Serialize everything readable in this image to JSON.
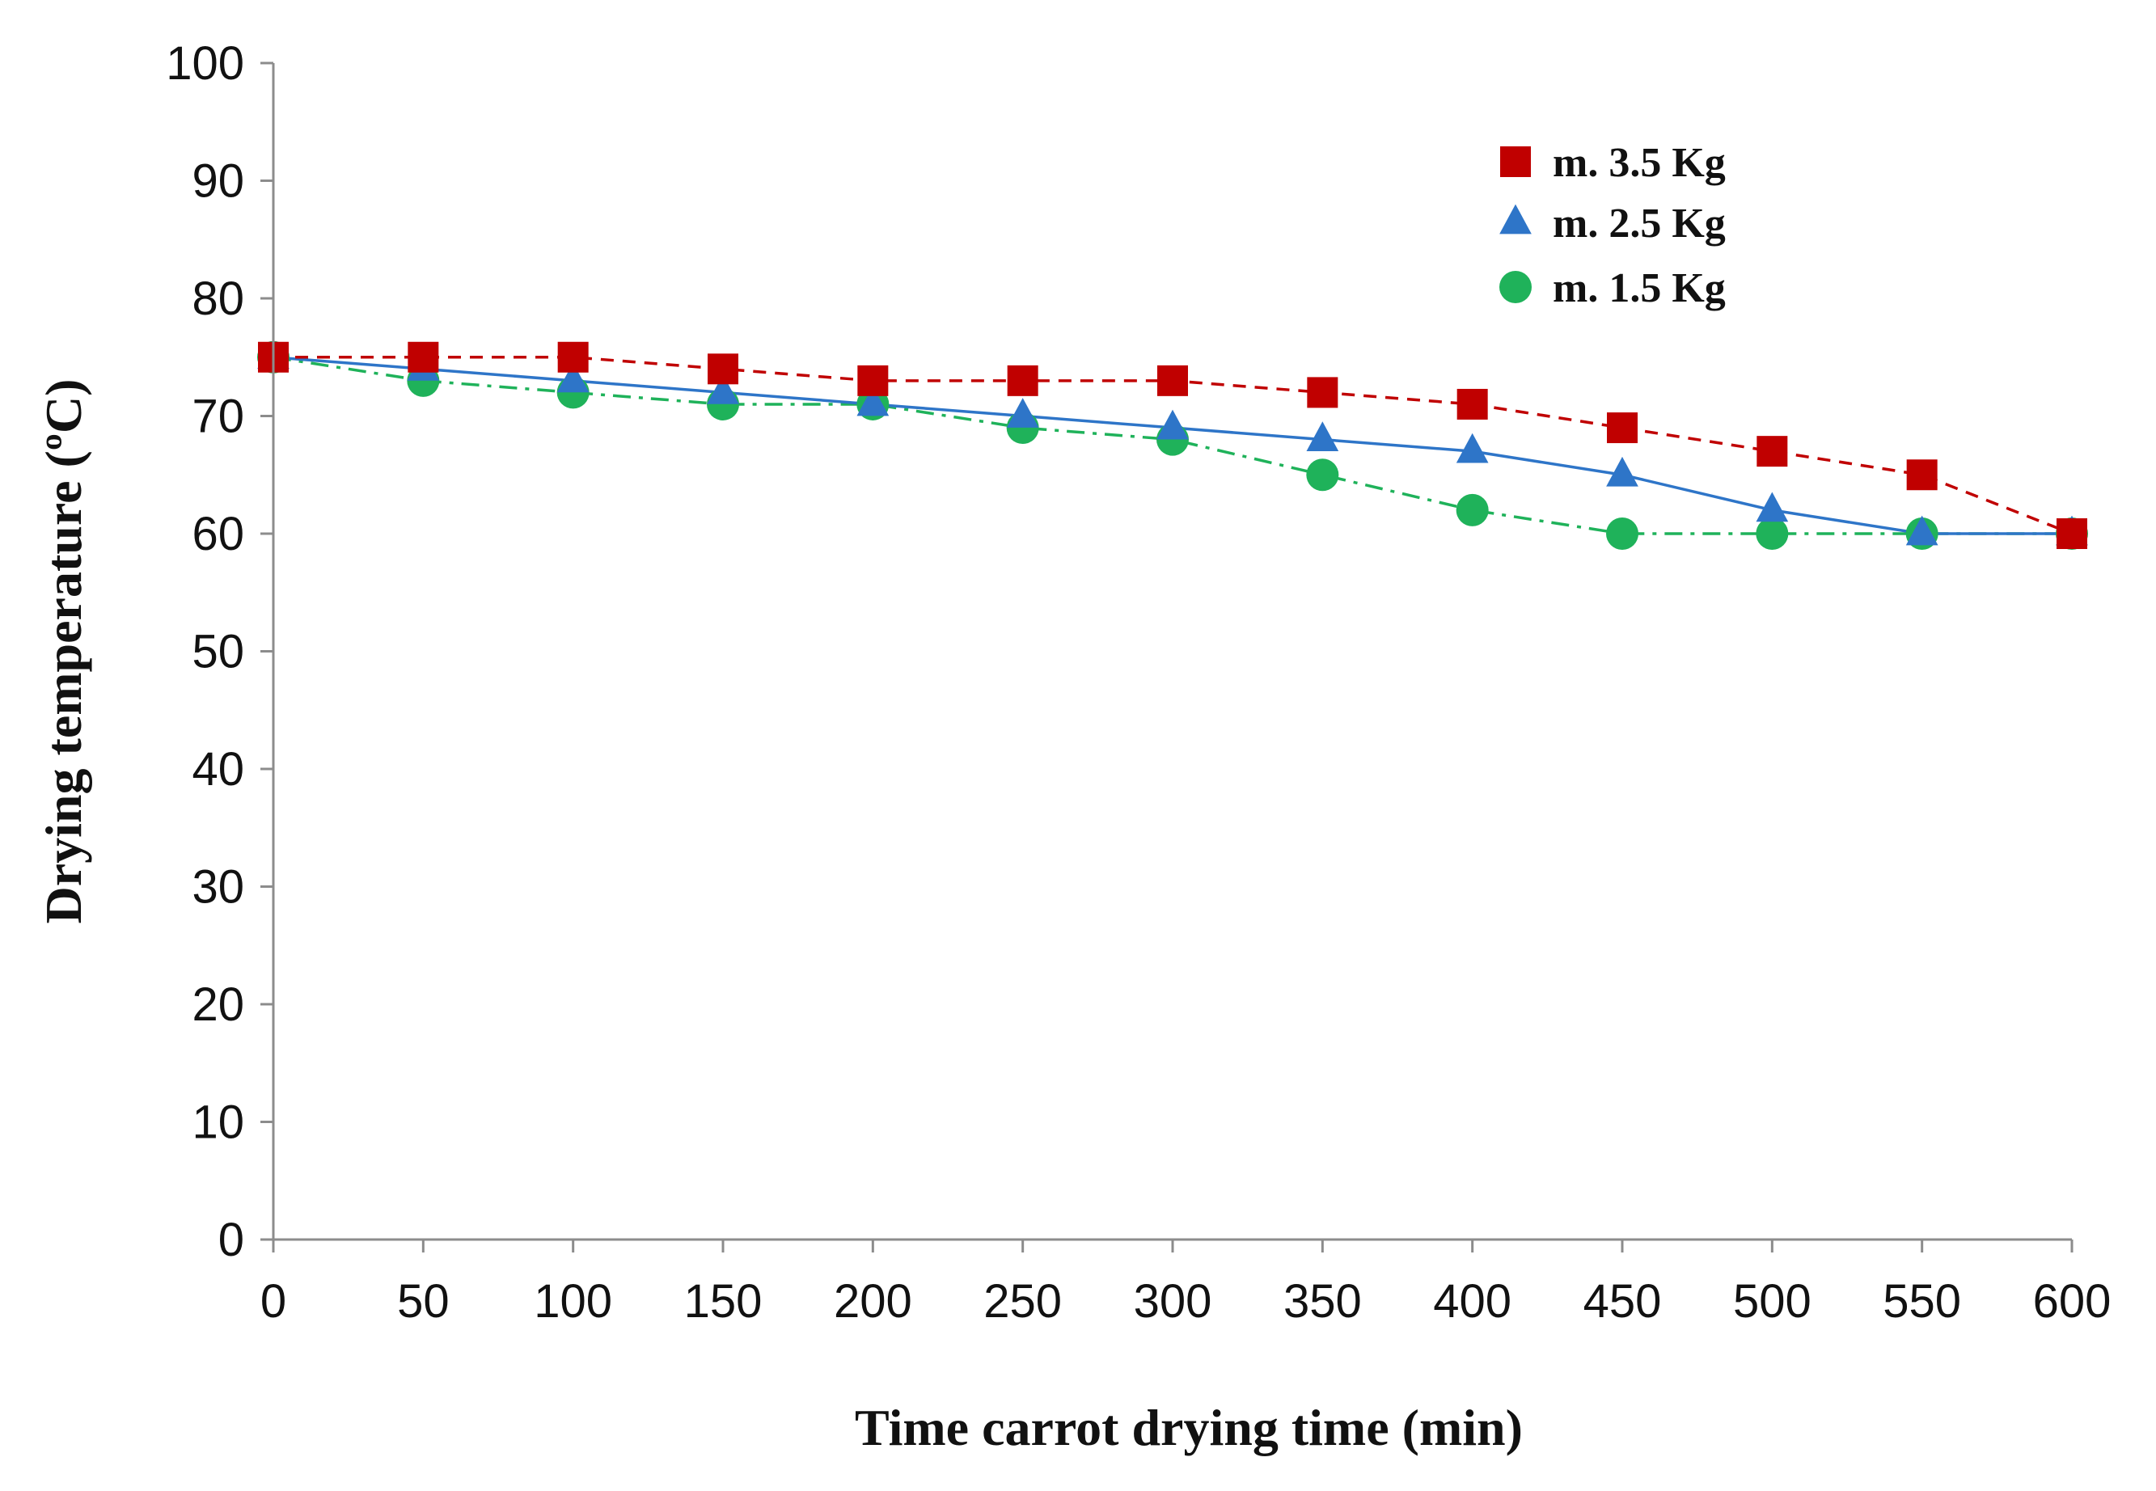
{
  "chart_data": {
    "type": "line",
    "title": "",
    "xlabel": "Time carrot drying time (min)",
    "ylabel": "Drying temperature (ºC)",
    "xlim": [
      0,
      600
    ],
    "ylim": [
      0,
      100
    ],
    "x_ticks": [
      0,
      50,
      100,
      150,
      200,
      250,
      300,
      350,
      400,
      450,
      500,
      550,
      600
    ],
    "y_ticks": [
      0,
      10,
      20,
      30,
      40,
      50,
      60,
      70,
      80,
      90,
      100
    ],
    "grid": false,
    "legend_position": "top-right",
    "x": [
      0,
      50,
      100,
      150,
      200,
      250,
      300,
      350,
      400,
      450,
      500,
      550,
      600
    ],
    "series": [
      {
        "name": "m. 3.5 Kg",
        "marker": "square",
        "line_style": "dashed",
        "color": "#c00000",
        "values": [
          75,
          75,
          75,
          74,
          73,
          73,
          73,
          72,
          71,
          69,
          67,
          65,
          60
        ]
      },
      {
        "name": "m. 2.5 Kg",
        "marker": "triangle",
        "line_style": "solid",
        "color": "#2e75c8",
        "values": [
          75,
          74,
          73,
          72,
          71,
          70,
          69,
          68,
          67,
          65,
          62,
          60,
          60
        ]
      },
      {
        "name": "m. 1.5 Kg",
        "marker": "circle",
        "line_style": "dash-dot",
        "color": "#1fb25a",
        "values": [
          75,
          73,
          72,
          71,
          71,
          69,
          68,
          65,
          62,
          60,
          60,
          60,
          60
        ]
      }
    ]
  }
}
